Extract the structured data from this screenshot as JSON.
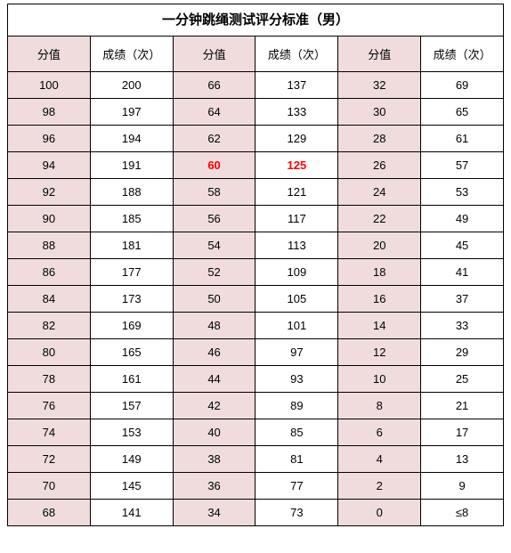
{
  "title": "一分钟跳绳测试评分标准（男）",
  "title_fontsize": 15,
  "header_fontsize": 13,
  "cell_fontsize": 13,
  "columns": [
    "分值",
    "成绩（次）",
    "分值",
    "成绩（次）",
    "分值",
    "成绩（次）"
  ],
  "score_col_bg": "#f0dcdc",
  "normal_col_bg": "#ffffff",
  "border_color": "#000000",
  "highlight_color": "#ff0000",
  "highlight_cells": [
    [
      3,
      2
    ],
    [
      3,
      3
    ]
  ],
  "last_cell_text": "≤8",
  "rows": [
    [
      "100",
      "200",
      "66",
      "137",
      "32",
      "69"
    ],
    [
      "98",
      "197",
      "64",
      "133",
      "30",
      "65"
    ],
    [
      "96",
      "194",
      "62",
      "129",
      "28",
      "61"
    ],
    [
      "94",
      "191",
      "60",
      "125",
      "26",
      "57"
    ],
    [
      "92",
      "188",
      "58",
      "121",
      "24",
      "53"
    ],
    [
      "90",
      "185",
      "56",
      "117",
      "22",
      "49"
    ],
    [
      "88",
      "181",
      "54",
      "113",
      "20",
      "45"
    ],
    [
      "86",
      "177",
      "52",
      "109",
      "18",
      "41"
    ],
    [
      "84",
      "173",
      "50",
      "105",
      "16",
      "37"
    ],
    [
      "82",
      "169",
      "48",
      "101",
      "14",
      "33"
    ],
    [
      "80",
      "165",
      "46",
      "97",
      "12",
      "29"
    ],
    [
      "78",
      "161",
      "44",
      "93",
      "10",
      "25"
    ],
    [
      "76",
      "157",
      "42",
      "89",
      "8",
      "21"
    ],
    [
      "74",
      "153",
      "40",
      "85",
      "6",
      "17"
    ],
    [
      "72",
      "149",
      "38",
      "81",
      "4",
      "13"
    ],
    [
      "70",
      "145",
      "36",
      "77",
      "2",
      "9"
    ],
    [
      "68",
      "141",
      "34",
      "73",
      "0",
      "≤8"
    ]
  ]
}
